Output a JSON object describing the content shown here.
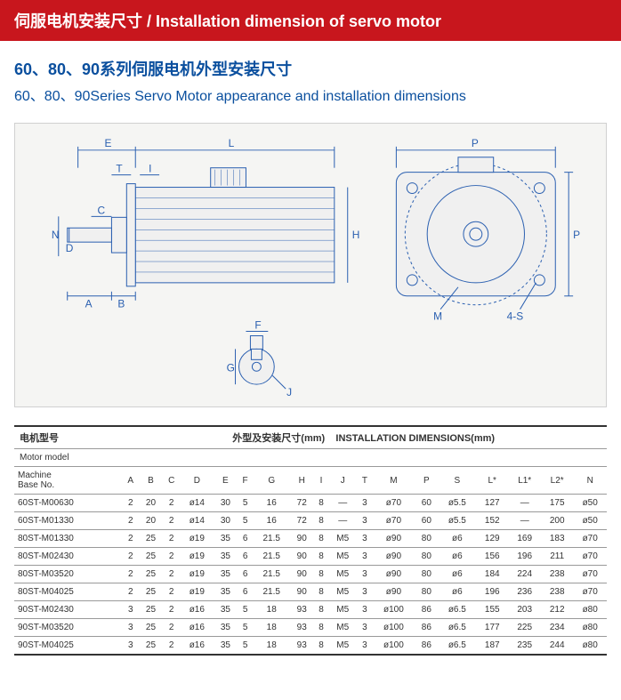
{
  "header": {
    "title": "伺服电机安装尺寸 / Installation dimension of servo motor"
  },
  "subtitle": {
    "cn": "60、80、90系列伺服电机外型安装尺寸",
    "en": "60、80、90Series Servo Motor appearance and installation dimensions"
  },
  "diagram_labels": {
    "E": "E",
    "L": "L",
    "T": "T",
    "I": "I",
    "C": "C",
    "N": "N",
    "D": "D",
    "A": "A",
    "B": "B",
    "H": "H",
    "P": "P",
    "P2": "P",
    "M": "M",
    "S": "4-S",
    "F": "F",
    "G": "G",
    "J": "J"
  },
  "table": {
    "header_label_cn": "电机型号",
    "header_label_en": "Motor model",
    "header_group_cn": "外型及安装尺寸(mm)",
    "header_group_en": "INSTALLATION DIMENSIONS(mm)",
    "sub_label1": "Machine",
    "sub_label2": "Base No.",
    "columns": [
      "A",
      "B",
      "C",
      "D",
      "E",
      "F",
      "G",
      "H",
      "I",
      "J",
      "T",
      "M",
      "P",
      "S",
      "L*",
      "L1*",
      "L2*",
      "N"
    ],
    "rows": [
      {
        "model": "60ST-M00630",
        "cells": [
          "2",
          "20",
          "2",
          "ø14",
          "30",
          "5",
          "16",
          "72",
          "8",
          "—",
          "3",
          "ø70",
          "60",
          "ø5.5",
          "127",
          "—",
          "175",
          "ø50"
        ]
      },
      {
        "model": "60ST-M01330",
        "cells": [
          "2",
          "20",
          "2",
          "ø14",
          "30",
          "5",
          "16",
          "72",
          "8",
          "—",
          "3",
          "ø70",
          "60",
          "ø5.5",
          "152",
          "—",
          "200",
          "ø50"
        ]
      },
      {
        "model": "80ST-M01330",
        "cells": [
          "2",
          "25",
          "2",
          "ø19",
          "35",
          "6",
          "21.5",
          "90",
          "8",
          "M5",
          "3",
          "ø90",
          "80",
          "ø6",
          "129",
          "169",
          "183",
          "ø70"
        ]
      },
      {
        "model": "80ST-M02430",
        "cells": [
          "2",
          "25",
          "2",
          "ø19",
          "35",
          "6",
          "21.5",
          "90",
          "8",
          "M5",
          "3",
          "ø90",
          "80",
          "ø6",
          "156",
          "196",
          "211",
          "ø70"
        ]
      },
      {
        "model": "80ST-M03520",
        "cells": [
          "2",
          "25",
          "2",
          "ø19",
          "35",
          "6",
          "21.5",
          "90",
          "8",
          "M5",
          "3",
          "ø90",
          "80",
          "ø6",
          "184",
          "224",
          "238",
          "ø70"
        ]
      },
      {
        "model": "80ST-M04025",
        "cells": [
          "2",
          "25",
          "2",
          "ø19",
          "35",
          "6",
          "21.5",
          "90",
          "8",
          "M5",
          "3",
          "ø90",
          "80",
          "ø6",
          "196",
          "236",
          "238",
          "ø70"
        ]
      },
      {
        "model": "90ST-M02430",
        "cells": [
          "3",
          "25",
          "2",
          "ø16",
          "35",
          "5",
          "18",
          "93",
          "8",
          "M5",
          "3",
          "ø100",
          "86",
          "ø6.5",
          "155",
          "203",
          "212",
          "ø80"
        ]
      },
      {
        "model": "90ST-M03520",
        "cells": [
          "3",
          "25",
          "2",
          "ø16",
          "35",
          "5",
          "18",
          "93",
          "8",
          "M5",
          "3",
          "ø100",
          "86",
          "ø6.5",
          "177",
          "225",
          "234",
          "ø80"
        ]
      },
      {
        "model": "90ST-M04025",
        "cells": [
          "3",
          "25",
          "2",
          "ø16",
          "35",
          "5",
          "18",
          "93",
          "8",
          "M5",
          "3",
          "ø100",
          "86",
          "ø6.5",
          "187",
          "235",
          "244",
          "ø80"
        ]
      }
    ]
  },
  "colors": {
    "header_bg": "#c8161d",
    "header_text": "#ffffff",
    "subtitle_text": "#0a4f9e",
    "diagram_bg": "#f5f5f3",
    "line": "#2a5fb0",
    "table_border": "#999999"
  }
}
